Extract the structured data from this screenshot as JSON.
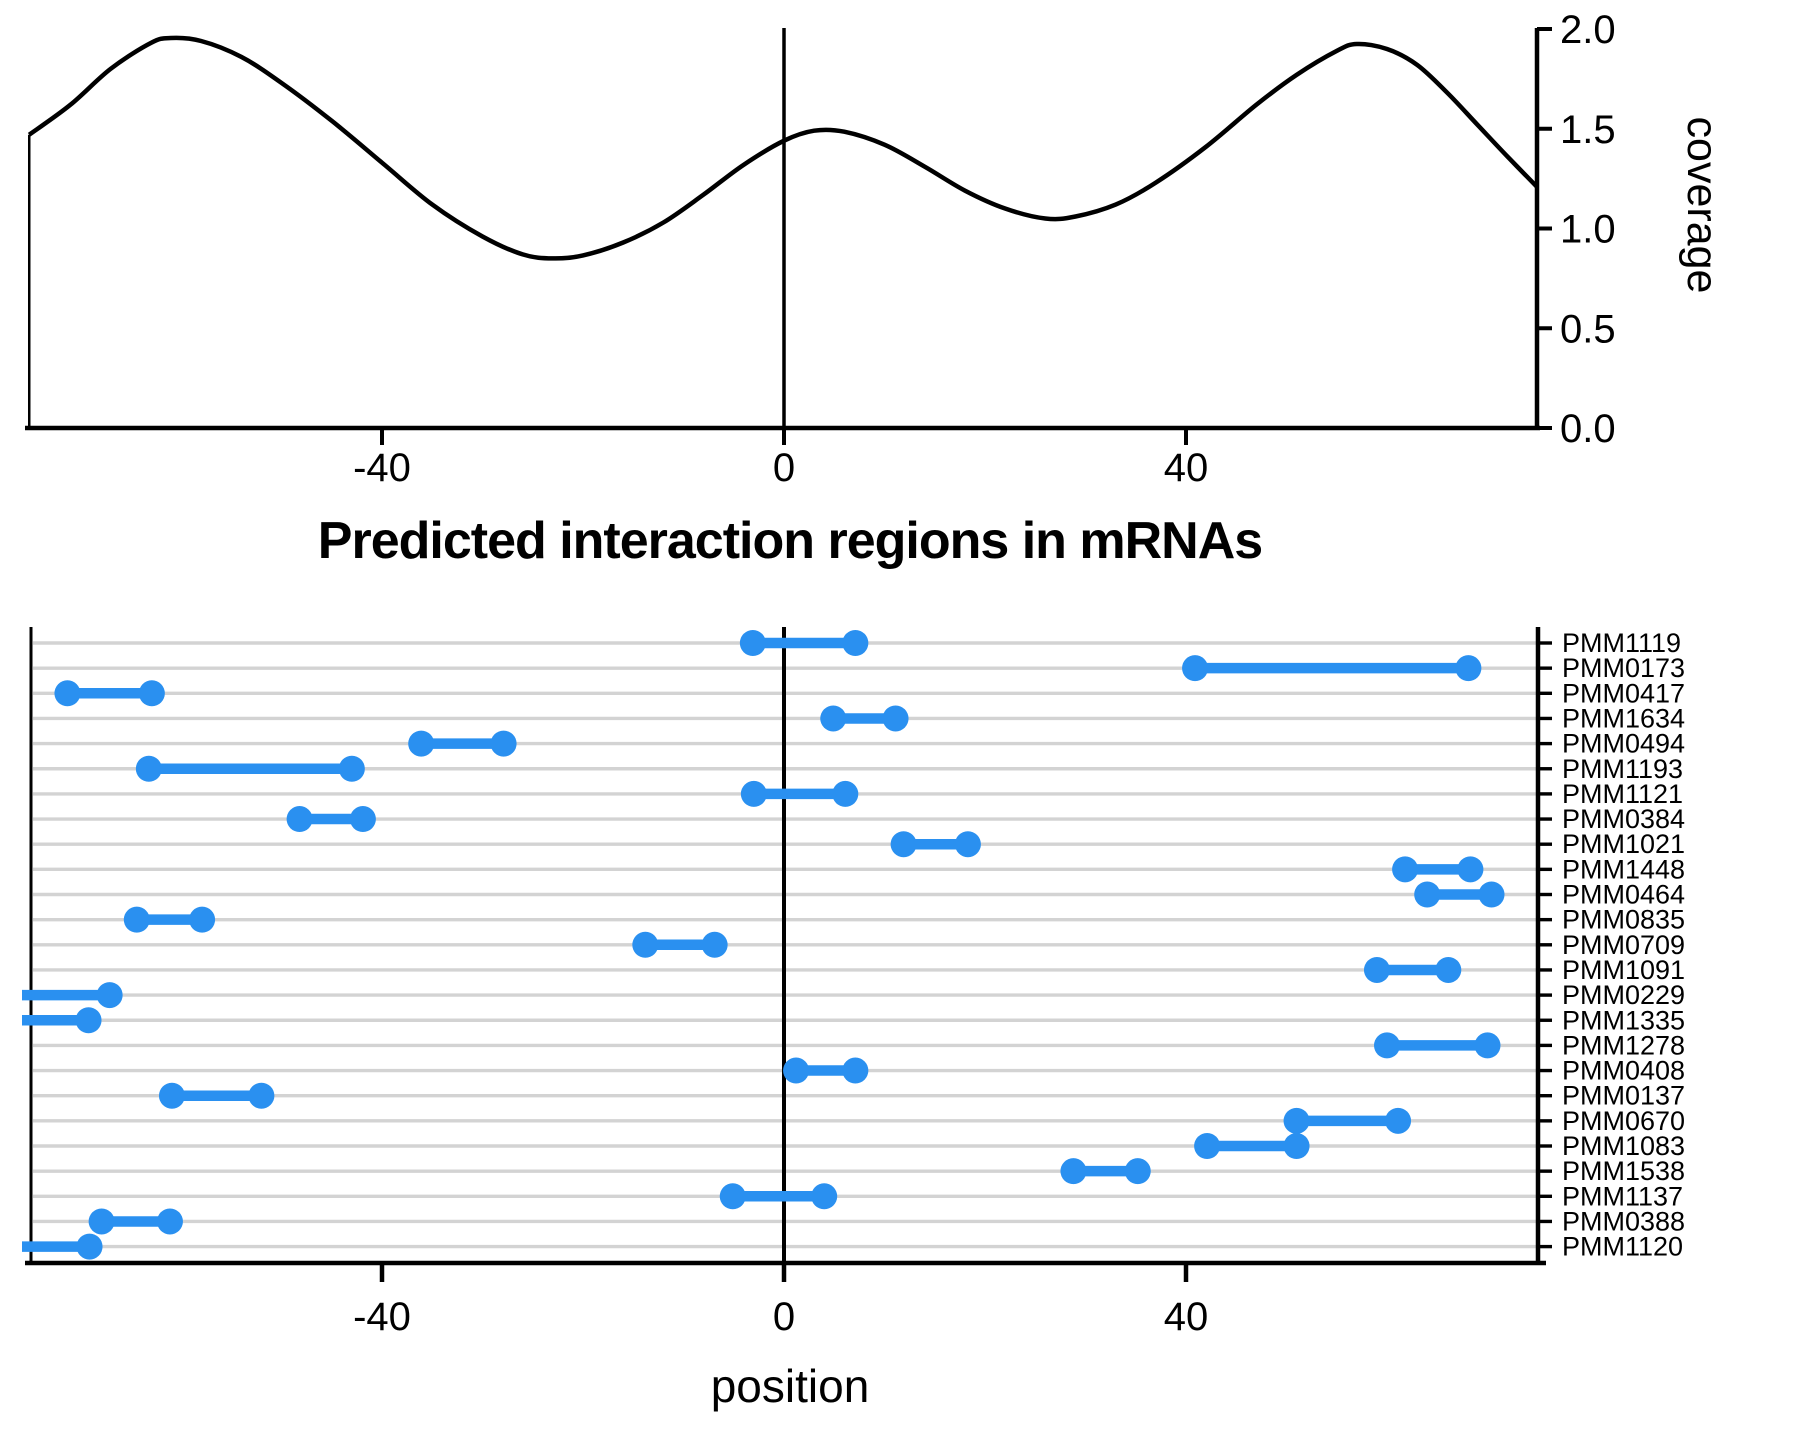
{
  "title": "Predicted interaction regions in mRNAs",
  "colors": {
    "segment": "#2a90f0",
    "grid": "#d3d3d3",
    "axis": "#000000",
    "background": "#ffffff"
  },
  "chart_data": [
    {
      "type": "line",
      "id": "coverage-curve",
      "ylabel": "coverage",
      "xlabel": "",
      "xlim": [
        -75.1,
        74.9
      ],
      "ylim": [
        0.0,
        2.0
      ],
      "x_ticks": [
        -40,
        0,
        40
      ],
      "y_ticks": [
        "0.0",
        "0.5",
        "1.0",
        "1.5",
        "2.0"
      ],
      "zero_line_x": 0,
      "grid": false,
      "legend": "none",
      "curve": [
        [
          -75.1,
          1.47
        ],
        [
          -71,
          1.62
        ],
        [
          -67,
          1.8
        ],
        [
          -63,
          1.93
        ],
        [
          -61,
          1.955
        ],
        [
          -58,
          1.94
        ],
        [
          -54,
          1.86
        ],
        [
          -50,
          1.73
        ],
        [
          -45,
          1.54
        ],
        [
          -40,
          1.33
        ],
        [
          -35,
          1.12
        ],
        [
          -30,
          0.96
        ],
        [
          -26,
          0.87
        ],
        [
          -23,
          0.85
        ],
        [
          -20,
          0.865
        ],
        [
          -16,
          0.93
        ],
        [
          -12,
          1.03
        ],
        [
          -8,
          1.17
        ],
        [
          -4,
          1.32
        ],
        [
          0,
          1.44
        ],
        [
          3,
          1.49
        ],
        [
          6,
          1.485
        ],
        [
          10,
          1.42
        ],
        [
          14,
          1.31
        ],
        [
          18,
          1.19
        ],
        [
          22,
          1.1
        ],
        [
          26,
          1.05
        ],
        [
          29,
          1.06
        ],
        [
          33,
          1.12
        ],
        [
          37,
          1.23
        ],
        [
          42,
          1.41
        ],
        [
          47,
          1.62
        ],
        [
          51,
          1.77
        ],
        [
          55,
          1.89
        ],
        [
          57,
          1.925
        ],
        [
          60,
          1.9
        ],
        [
          63,
          1.82
        ],
        [
          66,
          1.68
        ],
        [
          69,
          1.52
        ],
        [
          72,
          1.36
        ],
        [
          74.9,
          1.21
        ]
      ]
    },
    {
      "type": "segment-range",
      "id": "interaction-regions",
      "xlabel": "position",
      "xlim": [
        -75.1,
        74.9
      ],
      "x_ticks": [
        -40,
        0,
        40
      ],
      "zero_line_x": 0,
      "grid": true,
      "rows": [
        {
          "label": "PMM1119",
          "start": -3.1,
          "end": 7.1
        },
        {
          "label": "PMM0173",
          "start": 40.9,
          "end": 68.1
        },
        {
          "label": "PMM0417",
          "start": -71.3,
          "end": -62.9
        },
        {
          "label": "PMM1634",
          "start": 4.9,
          "end": 11.1
        },
        {
          "label": "PMM0494",
          "start": -36.1,
          "end": -27.9
        },
        {
          "label": "PMM1193",
          "start": -63.2,
          "end": -43.0
        },
        {
          "label": "PMM1121",
          "start": -3.0,
          "end": 6.1
        },
        {
          "label": "PMM0384",
          "start": -48.2,
          "end": -41.9
        },
        {
          "label": "PMM1021",
          "start": 11.9,
          "end": 18.3
        },
        {
          "label": "PMM1448",
          "start": 61.8,
          "end": 68.3
        },
        {
          "label": "PMM0464",
          "start": 64.0,
          "end": 70.4
        },
        {
          "label": "PMM0835",
          "start": -64.4,
          "end": -57.9
        },
        {
          "label": "PMM0709",
          "start": -13.8,
          "end": -6.9
        },
        {
          "label": "PMM1091",
          "start": 59.0,
          "end": 66.1
        },
        {
          "label": "PMM0229",
          "start": -77.0,
          "end": -67.1
        },
        {
          "label": "PMM1335",
          "start": -77.0,
          "end": -69.2
        },
        {
          "label": "PMM1278",
          "start": 60.0,
          "end": 70.0
        },
        {
          "label": "PMM0408",
          "start": 1.2,
          "end": 7.1
        },
        {
          "label": "PMM0137",
          "start": -60.9,
          "end": -52.0
        },
        {
          "label": "PMM0670",
          "start": 51.0,
          "end": 61.1
        },
        {
          "label": "PMM1083",
          "start": 42.1,
          "end": 51.0
        },
        {
          "label": "PMM1538",
          "start": 28.8,
          "end": 35.2
        },
        {
          "label": "PMM1137",
          "start": -5.1,
          "end": 4.0
        },
        {
          "label": "PMM0388",
          "start": -67.9,
          "end": -61.1
        },
        {
          "label": "PMM1120",
          "start": -77.0,
          "end": -69.1
        }
      ]
    }
  ]
}
